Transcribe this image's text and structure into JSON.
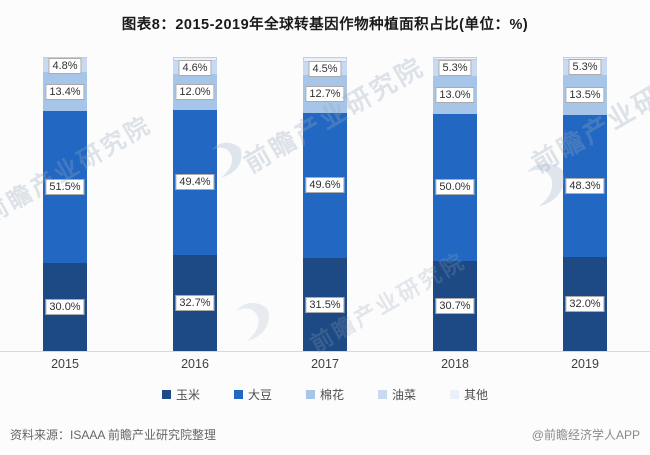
{
  "title": "图表8：2015-2019年全球转基因作物种植面积占比(单位：%)",
  "chart_data": {
    "type": "bar",
    "stacked": true,
    "orientation": "vertical",
    "title": "图表8：2015-2019年全球转基因作物种植面积占比(单位：%)",
    "categories": [
      "2015",
      "2016",
      "2017",
      "2018",
      "2019"
    ],
    "series": [
      {
        "name": "玉米",
        "key": "corn",
        "color": "#1d4a85",
        "labeled": true,
        "values": [
          30.0,
          32.7,
          31.5,
          30.7,
          32.0
        ]
      },
      {
        "name": "大豆",
        "key": "soybean",
        "color": "#2268c2",
        "labeled": true,
        "values": [
          51.5,
          49.4,
          49.6,
          50.0,
          48.3
        ]
      },
      {
        "name": "棉花",
        "key": "cotton",
        "color": "#a6c5e8",
        "labeled": true,
        "values": [
          13.4,
          12.0,
          12.7,
          13.0,
          13.5
        ]
      },
      {
        "name": "油菜",
        "key": "canola",
        "color": "#c7daf1",
        "labeled": true,
        "values": [
          4.8,
          4.6,
          4.5,
          5.3,
          5.3
        ]
      },
      {
        "name": "其他",
        "key": "other",
        "color": "#e9f0f9",
        "labeled": false,
        "values": [
          0.3,
          1.3,
          1.7,
          1.0,
          0.9
        ]
      }
    ],
    "value_suffix": "%",
    "ylim": [
      0,
      100
    ],
    "grid": false,
    "legend_position": "bottom",
    "axis_line_color": "#d8d8d8"
  },
  "footer": {
    "source": "资料来源：ISAAA 前瞻产业研究院整理",
    "credit": "@前瞻经济学人APP"
  },
  "watermark": {
    "text": "前瞻产业研究院",
    "logo": "qianzhan-swoosh-logo"
  }
}
